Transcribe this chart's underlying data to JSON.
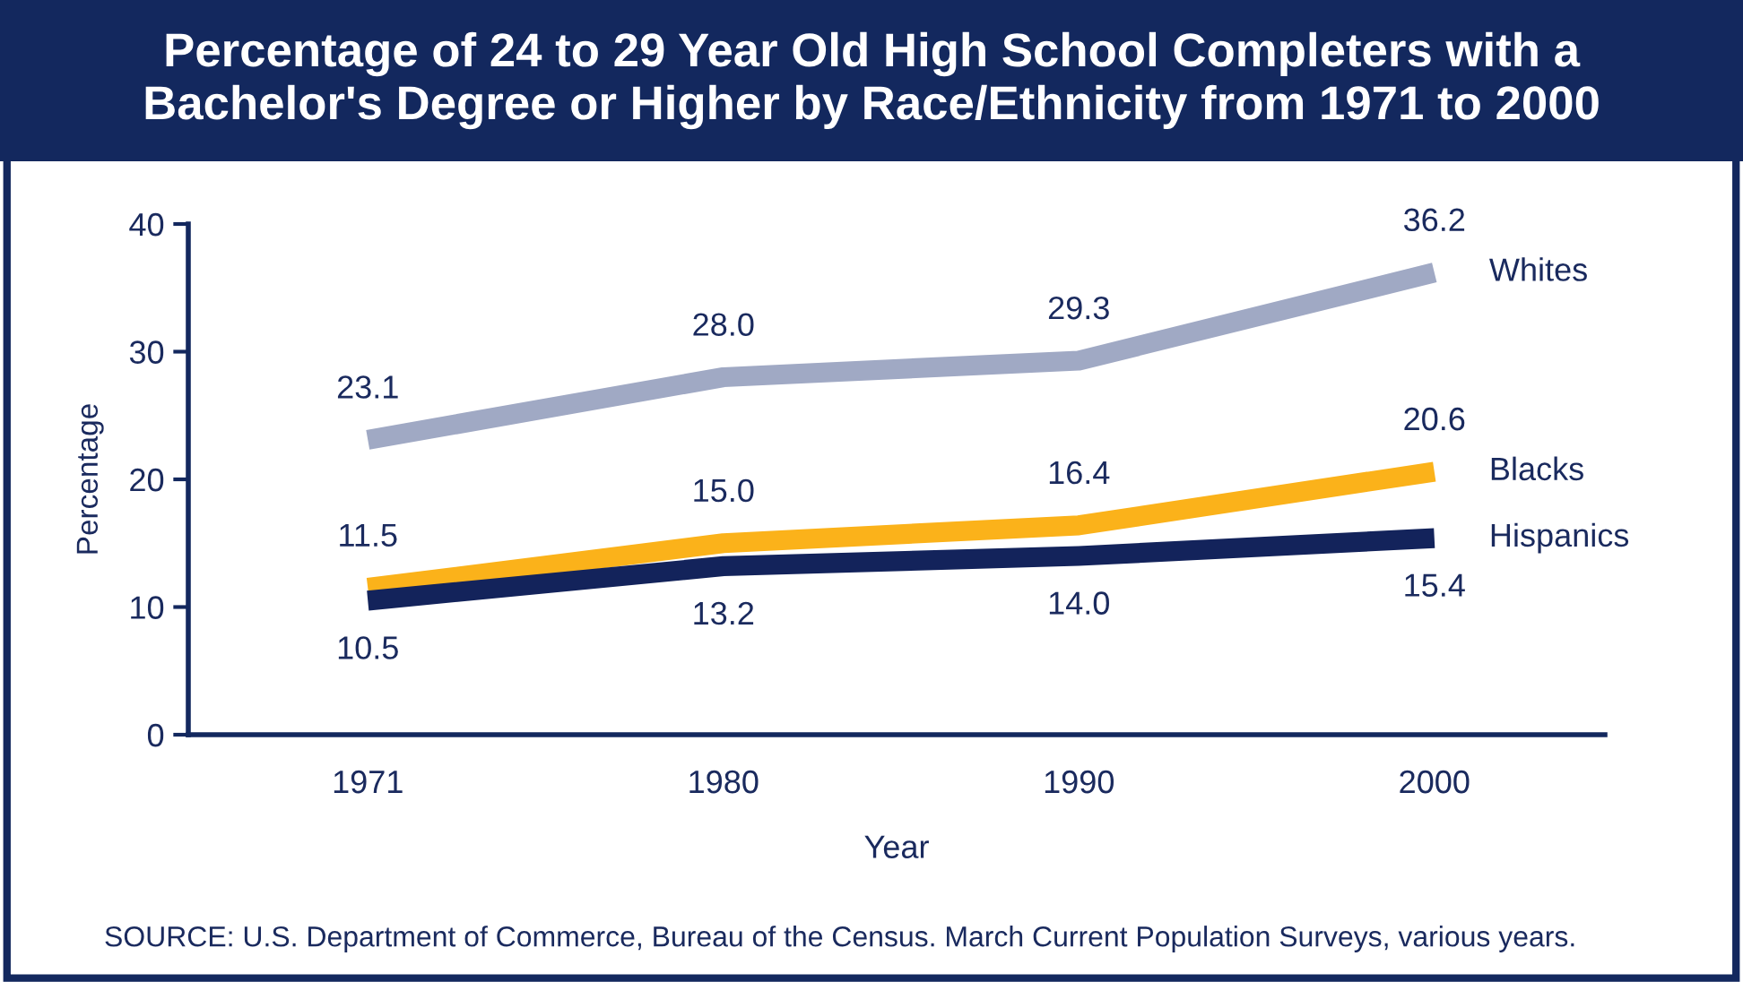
{
  "chart_data": {
    "type": "line",
    "title": "Percentage of 24 to 29 Year Old High School Completers with a\nBachelor's Degree or Higher by Race/Ethnicity from 1971 to 2000",
    "xlabel": "Year",
    "ylabel": "Percentage",
    "categories": [
      "1971",
      "1980",
      "1990",
      "2000"
    ],
    "series": [
      {
        "name": "Whites",
        "color": "#a0a9c4",
        "values": [
          23.1,
          28.0,
          29.3,
          36.2
        ],
        "value_labels": [
          "23.1",
          "28.0",
          "29.3",
          "36.2"
        ]
      },
      {
        "name": "Blacks",
        "color": "#fbb21a",
        "values": [
          11.5,
          15.0,
          16.4,
          20.6
        ],
        "value_labels": [
          "11.5",
          "15.0",
          "16.4",
          "20.6"
        ]
      },
      {
        "name": "Hispanics",
        "color": "#13235b",
        "values": [
          10.5,
          13.2,
          14.0,
          15.4
        ],
        "value_labels": [
          "10.5",
          "13.2",
          "14.0",
          "15.4"
        ]
      }
    ],
    "ylim": [
      0,
      40
    ],
    "yticks": [
      0,
      10,
      20,
      30,
      40
    ],
    "grid": false,
    "marker": "none",
    "line_style": "solid",
    "legend": false,
    "annotations": [
      "SOURCE: U.S. Department of Commerce, Bureau of the Census. March Current Population Surveys, various years."
    ]
  }
}
